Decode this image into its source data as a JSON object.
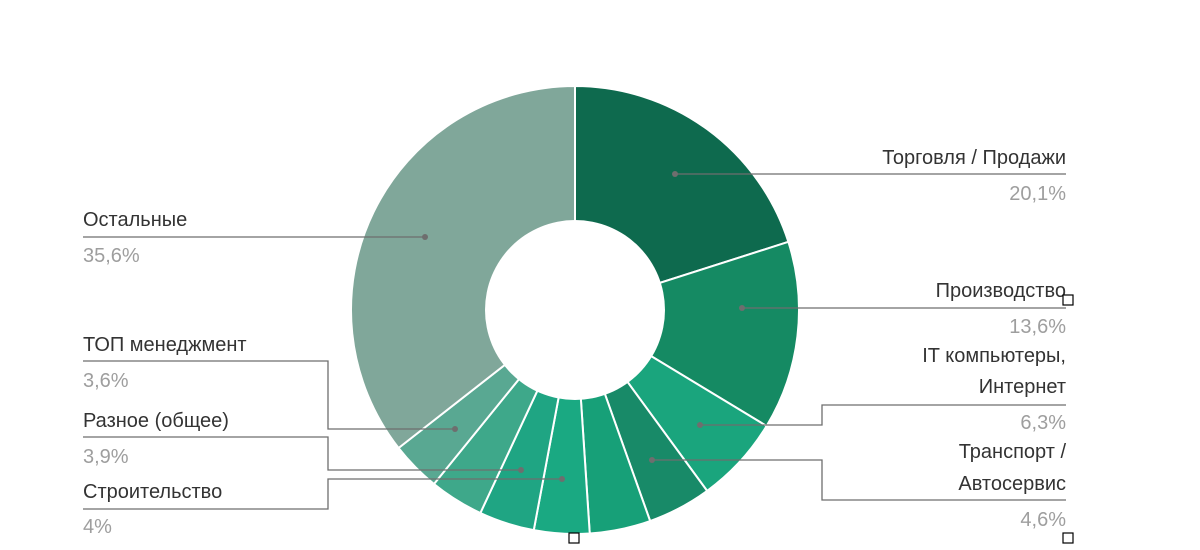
{
  "chart_data": {
    "type": "pie",
    "donut": true,
    "slices": [
      {
        "label": "Торговля / Продажи",
        "value_label": "20,1%",
        "value": 20.1,
        "color": "#0e6a4e"
      },
      {
        "label": "Производство",
        "value_label": "13,6%",
        "value": 13.6,
        "color": "#158a63"
      },
      {
        "label": "IT компьютеры, Интернет",
        "label_lines": [
          "IT компьютеры,",
          "Интернет"
        ],
        "value_label": "6,3%",
        "value": 6.3,
        "color": "#1aa57d"
      },
      {
        "label": "Транспорт / Автосервис",
        "label_lines": [
          "Транспорт /",
          "Автосервис"
        ],
        "value_label": "4,6%",
        "value": 4.6,
        "color": "#188a68"
      },
      {
        "label": "",
        "value": 4.4,
        "color": "#17a078"
      },
      {
        "label": "Строительство",
        "value_label": "4%",
        "value": 4.0,
        "color": "#1aa982"
      },
      {
        "label": "",
        "value": 4.0,
        "color": "#1fa583"
      },
      {
        "label": "Разное (общее)",
        "value_label": "3,9%",
        "value": 3.9,
        "color": "#3ea88a"
      },
      {
        "label": "ТОП менеджмент",
        "value_label": "3,6%",
        "value": 3.6,
        "color": "#59a892"
      },
      {
        "label": "Остальные",
        "value_label": "35,6%",
        "value": 35.6,
        "color": "#80a79a"
      }
    ]
  }
}
